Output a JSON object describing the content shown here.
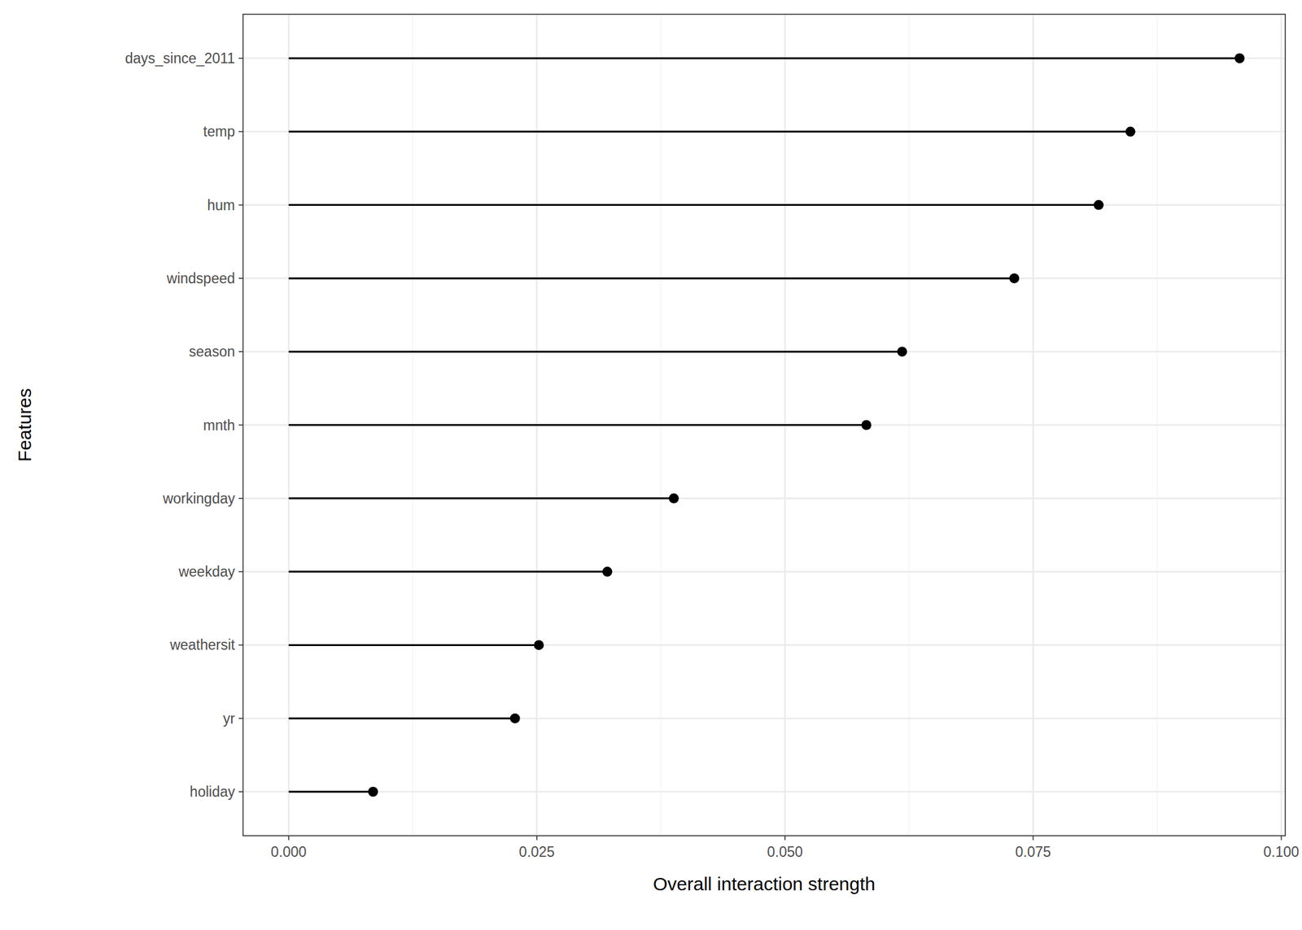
{
  "chart_data": {
    "type": "lollipop",
    "orientation": "horizontal",
    "x_label": "Overall interaction strength",
    "y_label": "Features",
    "categories": [
      "days_since_2011",
      "temp",
      "hum",
      "windspeed",
      "season",
      "mnth",
      "workingday",
      "weekday",
      "weathersit",
      "yr",
      "holiday"
    ],
    "values": [
      0.0958,
      0.0848,
      0.0816,
      0.0731,
      0.0618,
      0.0582,
      0.0388,
      0.0321,
      0.0252,
      0.0228,
      0.0085
    ],
    "color": "#000000",
    "xlim": [
      -0.0046,
      0.1004
    ],
    "xticks": [
      {
        "value": 0,
        "label": "0.000"
      },
      0.025,
      {
        "value": 0.05,
        "label": "0.050"
      },
      0.075,
      {
        "value": 0.1,
        "label": "0.100"
      }
    ],
    "grid": true
  }
}
